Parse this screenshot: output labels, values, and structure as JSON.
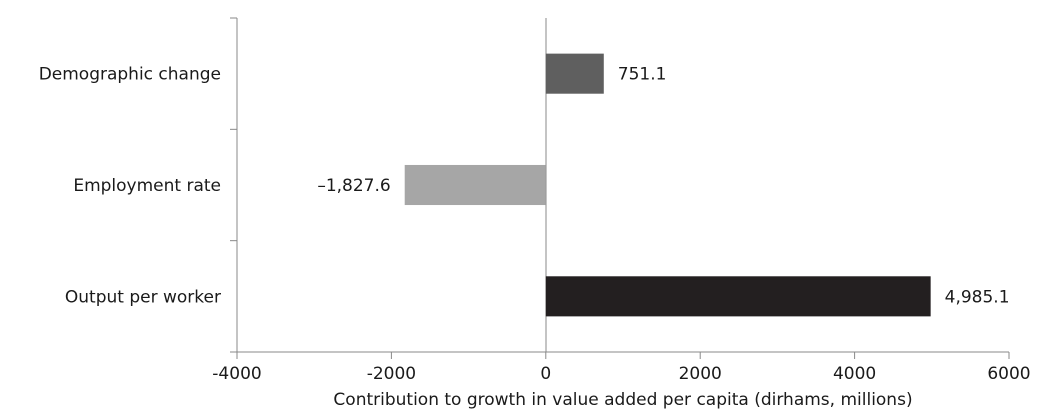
{
  "chart_data": {
    "type": "bar",
    "orientation": "horizontal",
    "categories": [
      "Demographic change",
      "Employment rate",
      "Output per worker"
    ],
    "values": [
      751.1,
      -1827.6,
      4985.1
    ],
    "data_labels": [
      "751.1",
      "–1,827.6",
      "4,985.1"
    ],
    "colors": [
      "#5f5f5f",
      "#a6a6a6",
      "#231f20"
    ],
    "xlabel": "Contribution to growth in value added per capita (dirhams, millions)",
    "ylabel": "",
    "title": "",
    "xlim": [
      -4000,
      6000
    ],
    "xticks": [
      -4000,
      -2000,
      0,
      2000,
      4000,
      6000
    ],
    "xtick_labels": [
      "-4000",
      "-2000",
      "0",
      "2000",
      "4000",
      "6000"
    ],
    "grid": false,
    "legend": "none"
  }
}
